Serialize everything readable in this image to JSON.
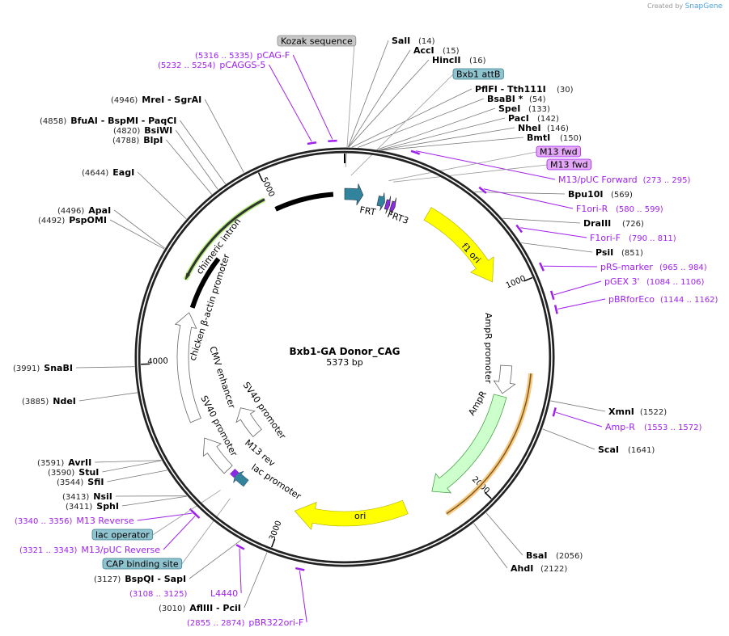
{
  "credit": {
    "prefix": "Created by",
    "brand": "SnapGene"
  },
  "map": {
    "title": "Bxb1-GA Donor_CAG",
    "length": "5373 bp"
  },
  "ticks": [
    "1000",
    "2000",
    "3000",
    "4000",
    "5000"
  ],
  "enzymes": [
    {
      "name": "SalI",
      "pos": "(14)",
      "bp": 14
    },
    {
      "name": "AccI",
      "pos": "(15)",
      "bp": 15
    },
    {
      "name": "HincII",
      "pos": "(16)",
      "bp": 16
    },
    {
      "name": "PflFI  - Tth111I",
      "pos": "(30)",
      "bp": 30
    },
    {
      "name": "BsaBI *",
      "pos": "(54)",
      "bp": 54
    },
    {
      "name": "SpeI",
      "pos": "(133)",
      "bp": 133
    },
    {
      "name": "PacI",
      "pos": "(142)",
      "bp": 142
    },
    {
      "name": "NheI",
      "pos": "(146)",
      "bp": 146
    },
    {
      "name": "BmtI",
      "pos": "(150)",
      "bp": 150
    },
    {
      "name": "Bpu10I",
      "pos": "(569)",
      "bp": 569
    },
    {
      "name": "DraIII",
      "pos": "(726)",
      "bp": 726
    },
    {
      "name": "PsiI",
      "pos": "(851)",
      "bp": 851
    },
    {
      "name": "XmnI",
      "pos": "(1522)",
      "bp": 1522
    },
    {
      "name": "ScaI",
      "pos": "(1641)",
      "bp": 1641
    },
    {
      "name": "BsaI",
      "pos": "(2056)",
      "bp": 2056
    },
    {
      "name": "AhdI",
      "pos": "(2122)",
      "bp": 2122
    },
    {
      "name": "AflIII  - PciI",
      "pos": "(3010)",
      "bp": 3010
    },
    {
      "name": "BspQI  - SapI",
      "pos": "(3127)",
      "bp": 3127
    },
    {
      "name": "SphI",
      "pos": "(3411)",
      "bp": 3411
    },
    {
      "name": "NsiI",
      "pos": "(3413)",
      "bp": 3413
    },
    {
      "name": "SfiI",
      "pos": "(3544)",
      "bp": 3544
    },
    {
      "name": "StuI",
      "pos": "(3590)",
      "bp": 3590
    },
    {
      "name": "AvrII",
      "pos": "(3591)",
      "bp": 3591
    },
    {
      "name": "NdeI",
      "pos": "(3885)",
      "bp": 3885
    },
    {
      "name": "SnaBI",
      "pos": "(3991)",
      "bp": 3991
    },
    {
      "name": "PspOMI",
      "pos": "(4492)",
      "bp": 4492
    },
    {
      "name": "ApaI",
      "pos": "(4496)",
      "bp": 4496
    },
    {
      "name": "EagI",
      "pos": "(4644)",
      "bp": 4644
    },
    {
      "name": "BlpI",
      "pos": "(4788)",
      "bp": 4788
    },
    {
      "name": "BsiWI",
      "pos": "(4820)",
      "bp": 4820
    },
    {
      "name": "BfuAI   - BspMI   - PaqCI",
      "pos": "(4858)",
      "bp": 4858
    },
    {
      "name": "MreI   - SgrAI",
      "pos": "(4946)",
      "bp": 4946
    }
  ],
  "primers": [
    {
      "name": "M13/pUC Forward",
      "range": "(273 .. 295)",
      "bp": 284
    },
    {
      "name": "F1ori-R",
      "range": "(580 .. 599)",
      "bp": 590
    },
    {
      "name": "F1ori-F",
      "range": "(790 .. 811)",
      "bp": 800
    },
    {
      "name": "pRS-marker",
      "range": "(965 .. 984)",
      "bp": 975
    },
    {
      "name": "pGEX 3'",
      "range": "(1084 .. 1106)",
      "bp": 1095
    },
    {
      "name": "pBRforEco",
      "range": "(1144 .. 1162)",
      "bp": 1153
    },
    {
      "name": "Amp-R",
      "range": "(1553 .. 1572)",
      "bp": 1562
    },
    {
      "name": "pBR322ori-F",
      "range": "(2855 .. 2874)",
      "bp": 2864
    },
    {
      "name": "L4440",
      "range": "(3108 .. 3125)",
      "bp": 3116
    },
    {
      "name": "M13/pUC Reverse",
      "range": "(3321 .. 3343)",
      "bp": 3332
    },
    {
      "name": "M13 Reverse",
      "range": "(3340 .. 3356)",
      "bp": 3348
    },
    {
      "name": "pCAGGS-5",
      "range": "(5232 .. 5254)",
      "bp": 5243
    },
    {
      "name": "pCAG-F",
      "range": "(5316 .. 5335)",
      "bp": 5325
    }
  ],
  "boxed_features": [
    {
      "name": "Kozak sequence",
      "color": "#c8c8c8"
    },
    {
      "name": "Bxb1 attB",
      "color": "#8fc3cf"
    },
    {
      "name": "M13 fwd",
      "color": "#e3a8f5"
    },
    {
      "name": "M13 fwd",
      "color": "#e3a8f5"
    },
    {
      "name": "lac operator",
      "color": "#8fc3cf"
    },
    {
      "name": "CAP binding site",
      "color": "#8fc3cf"
    }
  ],
  "features": {
    "frt": "FRT",
    "frt3": "FRT3",
    "f1_ori": "f1 ori",
    "ampr_promoter": "AmpR promoter",
    "ampr": "AmpR",
    "ori": "ori",
    "lac_promoter": "lac promoter",
    "m13_rev": "M13 rev",
    "sv40_promoter_1": "SV40 promoter",
    "sv40_promoter_2": "SV40 promoter",
    "cmv_enhancer": "CMV enhancer",
    "cba_promoter": "chicken β-actin promoter",
    "chimeric_intron": "chimeric intron"
  },
  "colors": {
    "primer": "#a020f0",
    "yellow": "#ffff00",
    "ampr": "#ccffcc",
    "teal": "#31849b",
    "intron": "#b3f07a"
  }
}
